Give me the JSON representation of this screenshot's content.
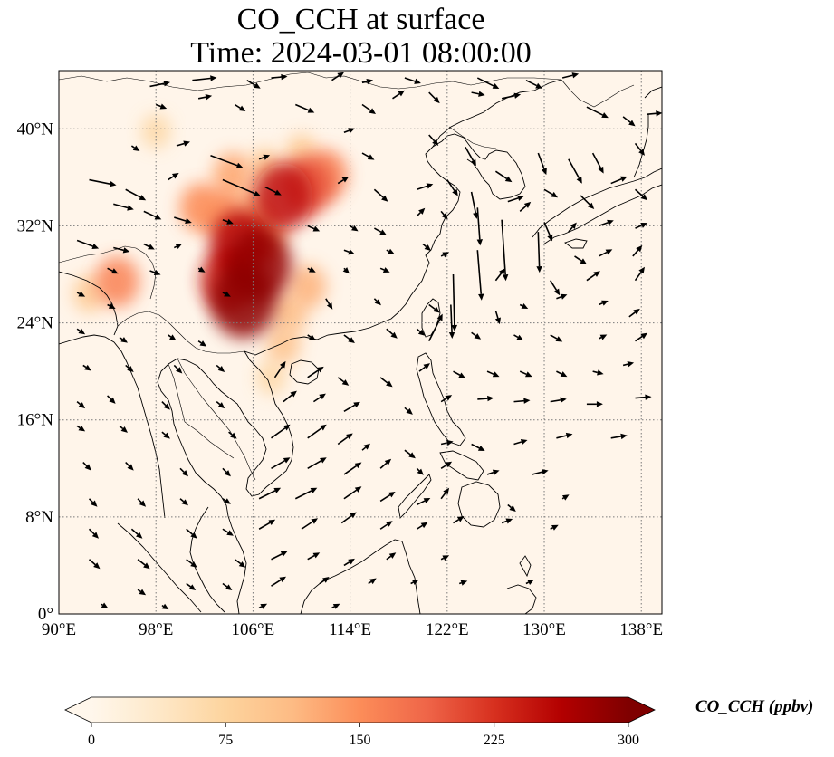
{
  "title": {
    "line1": "CO_CCH at surface",
    "line2": "Time: 2024-03-01 08:00:00"
  },
  "map": {
    "lon_range": [
      90,
      139.7
    ],
    "lat_range": [
      0,
      44.8
    ],
    "x_ticks": [
      {
        "value": 90,
        "label": "90°E"
      },
      {
        "value": 98,
        "label": "98°E"
      },
      {
        "value": 106,
        "label": "106°E"
      },
      {
        "value": 114,
        "label": "114°E"
      },
      {
        "value": 122,
        "label": "122°E"
      },
      {
        "value": 130,
        "label": "130°E"
      },
      {
        "value": 138,
        "label": "138°E"
      }
    ],
    "y_ticks": [
      {
        "value": 0,
        "label": "0°"
      },
      {
        "value": 8,
        "label": "8°N"
      },
      {
        "value": 16,
        "label": "16°N"
      },
      {
        "value": 24,
        "label": "24°N"
      },
      {
        "value": 32,
        "label": "32°N"
      },
      {
        "value": 40,
        "label": "40°N"
      }
    ],
    "gridlines": "dotted",
    "colormap": "OrRd",
    "colors": {
      "background": "#fff5ea",
      "coast": "#000000",
      "grid": "#7a7a7a",
      "arrow": "#000000"
    },
    "concentration_features": [
      {
        "lon": 105.2,
        "lat": 25.8,
        "value": 290
      },
      {
        "lon": 106.5,
        "lat": 28.8,
        "value": 285
      },
      {
        "lon": 105.0,
        "lat": 30.5,
        "value": 260
      },
      {
        "lon": 104.0,
        "lat": 27.5,
        "value": 240
      },
      {
        "lon": 108.5,
        "lat": 34.4,
        "value": 250
      },
      {
        "lon": 110.5,
        "lat": 35.3,
        "value": 200
      },
      {
        "lon": 112.0,
        "lat": 36.2,
        "value": 160
      },
      {
        "lon": 101.7,
        "lat": 33.5,
        "value": 150
      },
      {
        "lon": 104.3,
        "lat": 36.2,
        "value": 130
      },
      {
        "lon": 103.5,
        "lat": 33.0,
        "value": 150
      },
      {
        "lon": 107.0,
        "lat": 31.5,
        "value": 140
      },
      {
        "lon": 110.5,
        "lat": 27.0,
        "value": 120
      },
      {
        "lon": 109.0,
        "lat": 24.8,
        "value": 110
      },
      {
        "lon": 108.5,
        "lat": 22.2,
        "value": 100
      },
      {
        "lon": 107.5,
        "lat": 19.5,
        "value": 70
      },
      {
        "lon": 94.8,
        "lat": 27.4,
        "value": 160
      },
      {
        "lon": 92.5,
        "lat": 26.4,
        "value": 90
      },
      {
        "lon": 110.0,
        "lat": 38.0,
        "value": 90
      },
      {
        "lon": 98.0,
        "lat": 39.8,
        "value": 70
      },
      {
        "lon": 107.0,
        "lat": 36.8,
        "value": 95
      },
      {
        "lon": 106.0,
        "lat": 33.5,
        "value": 120
      }
    ],
    "wind_vectors": [
      [
        97.5,
        43.5,
        1.5,
        0.3
      ],
      [
        101,
        44,
        1.8,
        0.2
      ],
      [
        105.5,
        44,
        1,
        -0.6
      ],
      [
        107.5,
        44.2,
        1.2,
        0.1
      ],
      [
        112.5,
        44,
        0.9,
        0.6
      ],
      [
        115,
        43.8,
        0.8,
        0.2
      ],
      [
        118.5,
        44.2,
        1.2,
        -0.4
      ],
      [
        124.5,
        44.2,
        1.6,
        -0.8
      ],
      [
        128.5,
        44,
        1.2,
        -0.6
      ],
      [
        131.5,
        44.2,
        1.2,
        0.3
      ],
      [
        98,
        42,
        0.8,
        -0.3
      ],
      [
        101.5,
        42.5,
        1,
        0.2
      ],
      [
        104.5,
        42,
        0.8,
        -0.5
      ],
      [
        109.5,
        42,
        1.4,
        -0.6
      ],
      [
        115,
        42,
        1,
        -0.7
      ],
      [
        117.5,
        42.5,
        0.9,
        0.6
      ],
      [
        120.5,
        43,
        0.8,
        -0.8
      ],
      [
        124,
        43,
        1,
        -0.2
      ],
      [
        126.5,
        42.5,
        1.4,
        0.3
      ],
      [
        133.5,
        41.8,
        1.6,
        -0.8
      ],
      [
        136.5,
        41,
        0.9,
        -0.7
      ],
      [
        138.5,
        41.2,
        1.1,
        0.1
      ],
      [
        96,
        38.6,
        0.6,
        -0.4
      ],
      [
        99.7,
        38.6,
        1,
        0.3
      ],
      [
        102.5,
        37.8,
        2.4,
        -0.9
      ],
      [
        106.5,
        37.5,
        0.8,
        0.3
      ],
      [
        113.5,
        39.7,
        0.8,
        0.3
      ],
      [
        115,
        38,
        0.9,
        -0.5
      ],
      [
        120.5,
        39.5,
        0.7,
        -0.8
      ],
      [
        123.5,
        38.5,
        0.8,
        -1.4
      ],
      [
        126,
        36.5,
        1.2,
        -0.8
      ],
      [
        129.5,
        38,
        0.6,
        -1.6
      ],
      [
        132,
        37.5,
        1,
        -1.8
      ],
      [
        134,
        38,
        0.8,
        -1.5
      ],
      [
        137.5,
        38.8,
        0.7,
        -0.9
      ],
      [
        92.5,
        35.8,
        2,
        -0.4
      ],
      [
        95.5,
        35,
        1.5,
        -0.8
      ],
      [
        99,
        35.8,
        0.8,
        0.5
      ],
      [
        103.5,
        35.8,
        2.8,
        -1.2
      ],
      [
        107,
        35.2,
        1.2,
        -0.6
      ],
      [
        113,
        35.5,
        0.8,
        0.5
      ],
      [
        116,
        35,
        1,
        -0.9
      ],
      [
        119.5,
        35,
        1.2,
        0.4
      ],
      [
        122,
        35.8,
        0.8,
        -1.2
      ],
      [
        124,
        34.8,
        0.4,
        -2.0
      ],
      [
        127,
        34,
        1.2,
        0.4
      ],
      [
        130,
        35,
        1,
        -0.6
      ],
      [
        133,
        34.5,
        1,
        -1
      ],
      [
        135.5,
        35.5,
        1.2,
        0.5
      ],
      [
        137.5,
        35,
        0.9,
        -0.8
      ],
      [
        94.5,
        33.8,
        1.5,
        -0.4
      ],
      [
        97,
        33.2,
        1.3,
        -0.6
      ],
      [
        99.5,
        32.7,
        1.3,
        -0.4
      ],
      [
        103.5,
        32.5,
        0.8,
        -0.3
      ],
      [
        110.5,
        32,
        0.9,
        -0.4
      ],
      [
        114,
        32,
        0.6,
        -0.4
      ],
      [
        116,
        31.8,
        0.9,
        -0.5
      ],
      [
        119.5,
        32.8,
        0.6,
        0.6
      ],
      [
        121.5,
        33.2,
        0.5,
        -0.6
      ],
      [
        124.5,
        33.5,
        0.2,
        -2.8
      ],
      [
        126.5,
        32.5,
        0.3,
        -4.5
      ],
      [
        128,
        33.2,
        0.8,
        0.7
      ],
      [
        130,
        32.3,
        0.6,
        -1.4
      ],
      [
        132,
        31.5,
        0.6,
        0.7
      ],
      [
        134.5,
        32,
        1.1,
        0.4
      ],
      [
        137.5,
        31.8,
        0.9,
        0.4
      ],
      [
        91.5,
        30.8,
        1.6,
        -0.6
      ],
      [
        94.5,
        30.2,
        1.2,
        -0.3
      ],
      [
        97,
        30.5,
        0.8,
        -0.4
      ],
      [
        99.5,
        30.2,
        0.6,
        0.3
      ],
      [
        113.5,
        30,
        0.8,
        -0.3
      ],
      [
        117,
        30,
        0.6,
        -0.3
      ],
      [
        120,
        30.5,
        0.6,
        -0.5
      ],
      [
        121.5,
        29.5,
        0.6,
        0.3
      ],
      [
        124.5,
        30,
        0.3,
        -3.7
      ],
      [
        129.5,
        31.5,
        0.1,
        -3.0
      ],
      [
        132.5,
        29.5,
        0.9,
        -0.6
      ],
      [
        134.5,
        29.5,
        1,
        0.5
      ],
      [
        137.3,
        29.5,
        0.7,
        0.8
      ],
      [
        94,
        28.5,
        0.8,
        -0.4
      ],
      [
        97.5,
        28.3,
        0.8,
        -0.3
      ],
      [
        101.5,
        28.5,
        0.5,
        -0.3
      ],
      [
        110.5,
        28.5,
        0.6,
        -0.3
      ],
      [
        113.5,
        28.5,
        0.4,
        -0.4
      ],
      [
        116.5,
        28.5,
        0.7,
        -0.3
      ],
      [
        122.5,
        28,
        0.1,
        -4.2
      ],
      [
        126,
        27.5,
        0.7,
        0.9
      ],
      [
        130.5,
        27.5,
        0.7,
        -1.1
      ],
      [
        133.5,
        27.5,
        1,
        0.7
      ],
      [
        137.5,
        27.5,
        0.7,
        1.0
      ],
      [
        91.5,
        26.5,
        0.6,
        -0.3
      ],
      [
        94,
        25.5,
        0.6,
        -0.3
      ],
      [
        103.5,
        26.5,
        0.6,
        -0.3
      ],
      [
        112,
        26,
        0.5,
        -0.8
      ],
      [
        116,
        26,
        0.5,
        -0.5
      ],
      [
        120.5,
        25.5,
        0.8,
        -0.6
      ],
      [
        122.3,
        25.5,
        0.1,
        -2.5
      ],
      [
        126,
        25,
        0.3,
        -1.0
      ],
      [
        128,
        25.5,
        0.6,
        -0.3
      ],
      [
        131,
        26,
        0.8,
        0.3
      ],
      [
        134.5,
        25.5,
        0.7,
        0.3
      ],
      [
        137,
        24.5,
        0.8,
        0.6
      ],
      [
        91.5,
        23.5,
        0.6,
        -0.4
      ],
      [
        95,
        22.8,
        0.6,
        -0.4
      ],
      [
        99,
        23,
        0.6,
        -0.4
      ],
      [
        101.5,
        22.5,
        0.6,
        -0.4
      ],
      [
        110.5,
        23,
        0.6,
        -0.4
      ],
      [
        113.5,
        23,
        0.8,
        -0.6
      ],
      [
        117,
        23.5,
        0.8,
        -0.7
      ],
      [
        119.5,
        23.5,
        0.6,
        -0.5
      ],
      [
        120.5,
        22.5,
        1.0,
        2.0
      ],
      [
        124,
        23.2,
        0.7,
        -0.5
      ],
      [
        127.5,
        23,
        0.7,
        -0.4
      ],
      [
        130.5,
        23,
        0.9,
        -0.5
      ],
      [
        134.5,
        22.7,
        0.6,
        0.3
      ],
      [
        137.5,
        22.5,
        0.9,
        0.6
      ],
      [
        92,
        20.5,
        0.6,
        -0.4
      ],
      [
        95.5,
        20.5,
        0.6,
        -0.5
      ],
      [
        99.5,
        20.5,
        0.6,
        -0.6
      ],
      [
        103,
        20.5,
        0.6,
        -0.5
      ],
      [
        107.8,
        19.5,
        0.8,
        1.2
      ],
      [
        110.5,
        19.5,
        1.2,
        0.8
      ],
      [
        113,
        19.5,
        0.8,
        -0.6
      ],
      [
        116.5,
        19.5,
        0.9,
        -0.7
      ],
      [
        119.7,
        20,
        0.8,
        0.6
      ],
      [
        122.5,
        20,
        0.9,
        -0.5
      ],
      [
        125.3,
        20,
        0.9,
        -0.4
      ],
      [
        128,
        20,
        0.9,
        -0.4
      ],
      [
        131,
        20,
        0.8,
        -0.4
      ],
      [
        134,
        20,
        0.8,
        -0.2
      ],
      [
        136.5,
        20.5,
        0.8,
        0.2
      ],
      [
        91.5,
        17.5,
        0.6,
        -0.5
      ],
      [
        94,
        18,
        0.6,
        -0.6
      ],
      [
        98.5,
        17.5,
        0.6,
        -0.6
      ],
      [
        103,
        17.5,
        0.6,
        -0.5
      ],
      [
        108.5,
        17.5,
        1.0,
        0.8
      ],
      [
        111,
        17.5,
        0.9,
        0.6
      ],
      [
        113.5,
        16.7,
        1.2,
        0.7
      ],
      [
        118.5,
        17,
        0.6,
        -0.5
      ],
      [
        121.5,
        17.5,
        0.8,
        0.5
      ],
      [
        124.5,
        17.7,
        1.2,
        0.1
      ],
      [
        127.5,
        17.5,
        1.2,
        0.1
      ],
      [
        130.5,
        17.5,
        1.2,
        0.2
      ],
      [
        133.5,
        17.3,
        1.2,
        0
      ],
      [
        137.5,
        17.8,
        1.2,
        0.1
      ],
      [
        91.5,
        15.5,
        0.6,
        -0.4
      ],
      [
        95,
        15.5,
        0.6,
        -0.5
      ],
      [
        98.5,
        15,
        0.6,
        -0.5
      ],
      [
        104,
        15,
        0.6,
        -0.5
      ],
      [
        107.5,
        14.5,
        1.4,
        1.0
      ],
      [
        110.5,
        14.5,
        1.4,
        1.0
      ],
      [
        113,
        14,
        1.1,
        0.8
      ],
      [
        115,
        13.5,
        0.6,
        0.5
      ],
      [
        118.5,
        13.5,
        0.8,
        -0.6
      ],
      [
        121.5,
        14,
        0.9,
        0.2
      ],
      [
        124,
        14,
        1,
        -0.5
      ],
      [
        127.5,
        14,
        1,
        0.3
      ],
      [
        131,
        14.5,
        1.2,
        0.3
      ],
      [
        135.5,
        14.5,
        1.2,
        0.2
      ],
      [
        92,
        12.5,
        0.6,
        -0.6
      ],
      [
        95.5,
        12.5,
        0.6,
        -0.6
      ],
      [
        100,
        12,
        0.6,
        -0.6
      ],
      [
        103.5,
        12,
        0.6,
        -0.6
      ],
      [
        107.5,
        12,
        1.4,
        0.8
      ],
      [
        110.5,
        12,
        1.4,
        0.8
      ],
      [
        113.5,
        11.5,
        1.3,
        0.9
      ],
      [
        116.5,
        12,
        0.8,
        0.7
      ],
      [
        119.5,
        12,
        0.5,
        -0.5
      ],
      [
        121.5,
        12,
        0.8,
        0.5
      ],
      [
        125.3,
        11.5,
        0.9,
        0.3
      ],
      [
        129,
        11.5,
        1.2,
        0.3
      ],
      [
        92.5,
        9.5,
        0.6,
        -0.6
      ],
      [
        96.5,
        9.5,
        0.6,
        -0.6
      ],
      [
        100,
        9.5,
        0.6,
        -0.5
      ],
      [
        103.5,
        9.5,
        0.6,
        -0.4
      ],
      [
        106.5,
        9.5,
        1.6,
        0.8
      ],
      [
        109.5,
        9.5,
        1.6,
        0.8
      ],
      [
        113.5,
        9.5,
        1.3,
        0.9
      ],
      [
        116.5,
        9.3,
        1.1,
        0.7
      ],
      [
        119.5,
        9,
        1,
        0.5
      ],
      [
        121.5,
        9.5,
        0.6,
        0.8
      ],
      [
        127,
        9,
        0.6,
        -0.5
      ],
      [
        131.5,
        9.5,
        0.5,
        0.3
      ],
      [
        92.5,
        7,
        0.7,
        -0.7
      ],
      [
        96,
        7,
        0.8,
        -0.7
      ],
      [
        100.5,
        7,
        0.8,
        -0.7
      ],
      [
        103.5,
        7,
        0.8,
        -0.5
      ],
      [
        106.5,
        7,
        1.2,
        0.7
      ],
      [
        110,
        7,
        1.2,
        0.8
      ],
      [
        113.3,
        7.5,
        1.1,
        0.8
      ],
      [
        116.5,
        7,
        0.9,
        0.6
      ],
      [
        119.5,
        7,
        0.8,
        0.5
      ],
      [
        122.5,
        7.5,
        0.8,
        0.5
      ],
      [
        126.5,
        7.5,
        0.8,
        0.3
      ],
      [
        130.5,
        7,
        0.6,
        0.3
      ],
      [
        92.5,
        4.5,
        0.8,
        -0.7
      ],
      [
        96.5,
        4.5,
        0.9,
        -0.7
      ],
      [
        100.5,
        4.5,
        0.8,
        -0.6
      ],
      [
        104.5,
        4.5,
        0.8,
        -0.6
      ],
      [
        107.5,
        4.5,
        1.2,
        0.6
      ],
      [
        110.5,
        4.5,
        0.9,
        0.5
      ],
      [
        113.5,
        4,
        0.8,
        0.5
      ],
      [
        117,
        4.5,
        0.7,
        0.5
      ],
      [
        121.5,
        4.5,
        0.6,
        0.3
      ],
      [
        96.5,
        2,
        0.6,
        -0.4
      ],
      [
        100.5,
        2.5,
        0.7,
        -0.5
      ],
      [
        103.5,
        2.5,
        0.7,
        -0.5
      ],
      [
        107.5,
        2.3,
        1.1,
        0.7
      ],
      [
        111.5,
        2.5,
        0.7,
        0.5
      ],
      [
        115.5,
        2.5,
        0.6,
        0.4
      ],
      [
        119,
        2.5,
        0.6,
        0.3
      ],
      [
        123,
        2.5,
        0.6,
        0.2
      ],
      [
        128.5,
        2.5,
        0.6,
        0.3
      ],
      [
        93.5,
        0.8,
        0.5,
        -0.3
      ],
      [
        98.5,
        0.7,
        0.5,
        -0.3
      ],
      [
        106.5,
        0.5,
        0.6,
        0.3
      ],
      [
        112.5,
        0.5,
        0.6,
        0.3
      ]
    ]
  },
  "colorbar": {
    "label": "CO_CCH (ppbv)",
    "min": 0,
    "max": 300,
    "extend": "both",
    "ticks": [
      "0",
      "75",
      "150",
      "225",
      "300"
    ],
    "stops": [
      "#fff7ec",
      "#fee8c8",
      "#fdd49e",
      "#fdbb84",
      "#fc8d59",
      "#ef6548",
      "#d7301f",
      "#b30000",
      "#7f0000"
    ]
  }
}
